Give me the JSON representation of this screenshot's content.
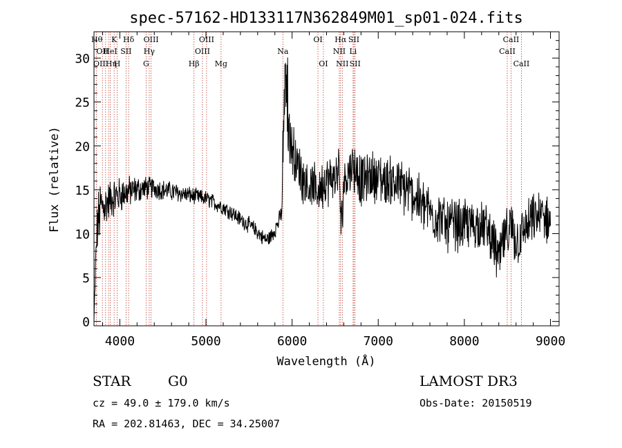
{
  "chart_data": {
    "type": "line",
    "title": "spec-57162-HD133117N362849M01_sp01-024.fits",
    "xlabel": "Wavelength (Å)",
    "ylabel": "Flux (relative)",
    "xlim": [
      3700,
      9100
    ],
    "ylim": [
      -0.5,
      33
    ],
    "x_ticks": [
      4000,
      5000,
      6000,
      7000,
      8000,
      9000
    ],
    "x_tick_labels": [
      "4000",
      "5000",
      "6000",
      "7000",
      "8000",
      "9000"
    ],
    "y_ticks": [
      0,
      5,
      10,
      15,
      20,
      25,
      30
    ],
    "y_tick_labels": [
      "0",
      "5",
      "10",
      "15",
      "20",
      "25",
      "30"
    ],
    "spectrum_anchor_wavelengths": [
      3700,
      3720,
      3740,
      3760,
      3780,
      3800,
      3850,
      3900,
      3950,
      4000,
      4050,
      4100,
      4200,
      4300,
      4400,
      4500,
      4600,
      4700,
      4800,
      4900,
      5000,
      5100,
      5200,
      5300,
      5400,
      5500,
      5600,
      5650,
      5700,
      5750,
      5800,
      5850,
      5880,
      5900,
      5920,
      5940,
      5960,
      5980,
      6000,
      6050,
      6100,
      6150,
      6200,
      6250,
      6300,
      6350,
      6400,
      6450,
      6500,
      6550,
      6570,
      6600,
      6650,
      6700,
      6750,
      6800,
      6850,
      6900,
      6950,
      7000,
      7050,
      7100,
      7150,
      7200,
      7250,
      7300,
      7350,
      7400,
      7450,
      7500,
      7550,
      7600,
      7650,
      7700,
      7750,
      7800,
      7850,
      7900,
      7950,
      8000,
      8050,
      8100,
      8150,
      8200,
      8250,
      8300,
      8350,
      8400,
      8450,
      8500,
      8550,
      8600,
      8650,
      8700,
      8750,
      8800,
      8850,
      8900,
      8950,
      9000
    ],
    "spectrum_anchor_flux": [
      0,
      7,
      11,
      12,
      13,
      13,
      13.5,
      14,
      14.2,
      14.4,
      14.6,
      14.8,
      15,
      15.2,
      15.2,
      15.0,
      14.8,
      14.6,
      14.4,
      14.2,
      14,
      13.5,
      13,
      12.4,
      11.6,
      11,
      10.2,
      9.6,
      9.3,
      9.6,
      10.5,
      11.5,
      12.5,
      20,
      27,
      25,
      22,
      21,
      20,
      18,
      17,
      16,
      15.5,
      15,
      15,
      15.5,
      16,
      16,
      16.5,
      17,
      10,
      16,
      17,
      18,
      17,
      16,
      16,
      16.5,
      16.5,
      16.5,
      16,
      16,
      16,
      16,
      15.5,
      15,
      15,
      14.5,
      14,
      13.5,
      13,
      12.5,
      12,
      12,
      11.5,
      11,
      11,
      11,
      11,
      11,
      11,
      11,
      11,
      11,
      10.5,
      10,
      8.5,
      7,
      9,
      10,
      10.5,
      9,
      9.5,
      10.5,
      11,
      11.5,
      12,
      12,
      11.5,
      11.5
    ],
    "noise_scale": [
      0.5,
      1.5,
      3,
      3,
      3,
      2.5,
      2.2,
      2,
      2,
      1.8,
      1.7,
      1.6,
      1.4,
      1.2,
      1.1,
      1.0,
      1.0,
      0.9,
      0.9,
      0.8,
      0.8,
      0.8,
      0.8,
      0.8,
      0.8,
      0.8,
      0.8,
      0.8,
      0.8,
      0.8,
      0.9,
      0.9,
      1.0,
      3,
      3,
      3,
      3,
      3,
      3,
      2.8,
      2.5,
      2.5,
      2.5,
      2.5,
      2.5,
      2.5,
      2.5,
      2.5,
      2.5,
      2.5,
      2.5,
      2.5,
      2.6,
      2.6,
      2.6,
      2.6,
      2.6,
      2.6,
      2.6,
      2.6,
      2.6,
      2.6,
      2.6,
      2.6,
      2.6,
      2.6,
      2.6,
      2.6,
      2.6,
      2.6,
      2.6,
      2.6,
      2.6,
      2.6,
      2.6,
      2.6,
      2.6,
      2.6,
      2.6,
      2.6,
      2.6,
      2.6,
      2.6,
      2.6,
      2.6,
      2.6,
      2.6,
      2.6,
      2.6,
      2.6,
      2.6,
      2.6,
      2.6,
      2.6,
      2.6,
      2.6,
      2.6,
      2.6,
      2.6,
      2.6
    ],
    "spectral_lines": [
      {
        "label": "Hθ",
        "wave": 3798,
        "row": 0,
        "anchor": "end"
      },
      {
        "label": "OII",
        "wave": 3727,
        "row": 1,
        "anchor": "start"
      },
      {
        "label": "OIII",
        "wave": 3869,
        "row": 2,
        "anchor": "end"
      },
      {
        "label": "Hη",
        "wave": 3835,
        "row": 2,
        "anchor": "start"
      },
      {
        "label": "K",
        "wave": 3934,
        "row": 0,
        "anchor": "middle"
      },
      {
        "label": "H",
        "wave": 3969,
        "row": 2,
        "anchor": "middle"
      },
      {
        "label": "HeI",
        "wave": 3889,
        "row": 1,
        "anchor": "middle"
      },
      {
        "label": "SII",
        "wave": 4072,
        "row": 1,
        "anchor": "middle"
      },
      {
        "label": "Hδ",
        "wave": 4102,
        "row": 0,
        "anchor": "middle"
      },
      {
        "label": "OIII",
        "wave": 4363,
        "row": 0,
        "anchor": "middle"
      },
      {
        "label": "Hγ",
        "wave": 4341,
        "row": 1,
        "anchor": "middle"
      },
      {
        "label": "G",
        "wave": 4305,
        "row": 2,
        "anchor": "middle"
      },
      {
        "label": "Hβ",
        "wave": 4861,
        "row": 2,
        "anchor": "middle"
      },
      {
        "label": "OIII",
        "wave": 5007,
        "row": 0,
        "anchor": "middle"
      },
      {
        "label": "OIII",
        "wave": 4959,
        "row": 1,
        "anchor": "middle"
      },
      {
        "label": "Mg",
        "wave": 5175,
        "row": 2,
        "anchor": "middle"
      },
      {
        "label": "Na",
        "wave": 5893,
        "row": 1,
        "anchor": "middle"
      },
      {
        "label": "OI",
        "wave": 6300,
        "row": 0,
        "anchor": "middle"
      },
      {
        "label": "OI",
        "wave": 6363,
        "row": 2,
        "anchor": "middle"
      },
      {
        "label": "Hα",
        "wave": 6563,
        "row": 0,
        "anchor": "middle"
      },
      {
        "label": "NII",
        "wave": 6548,
        "row": 1,
        "anchor": "middle"
      },
      {
        "label": "NII",
        "wave": 6583,
        "row": 2,
        "anchor": "middle"
      },
      {
        "label": "SII",
        "wave": 6717,
        "row": 0,
        "anchor": "middle"
      },
      {
        "label": "Li",
        "wave": 6708,
        "row": 1,
        "anchor": "middle"
      },
      {
        "label": "SII",
        "wave": 6731,
        "row": 2,
        "anchor": "middle"
      },
      {
        "label": "CaII",
        "wave": 8542,
        "row": 0,
        "anchor": "middle"
      },
      {
        "label": "CaII",
        "wave": 8498,
        "row": 1,
        "anchor": "middle"
      },
      {
        "label": "CaII",
        "wave": 8662,
        "row": 2,
        "anchor": "middle"
      }
    ]
  },
  "info": {
    "class": "STAR",
    "subclass": "G0",
    "survey": "LAMOST DR3",
    "redshift": "cz = 49.0 ± 179.0 km/s",
    "obs_date": "Obs-Date: 20150519",
    "coords": "RA = 202.81463, DEC =  34.25007"
  }
}
